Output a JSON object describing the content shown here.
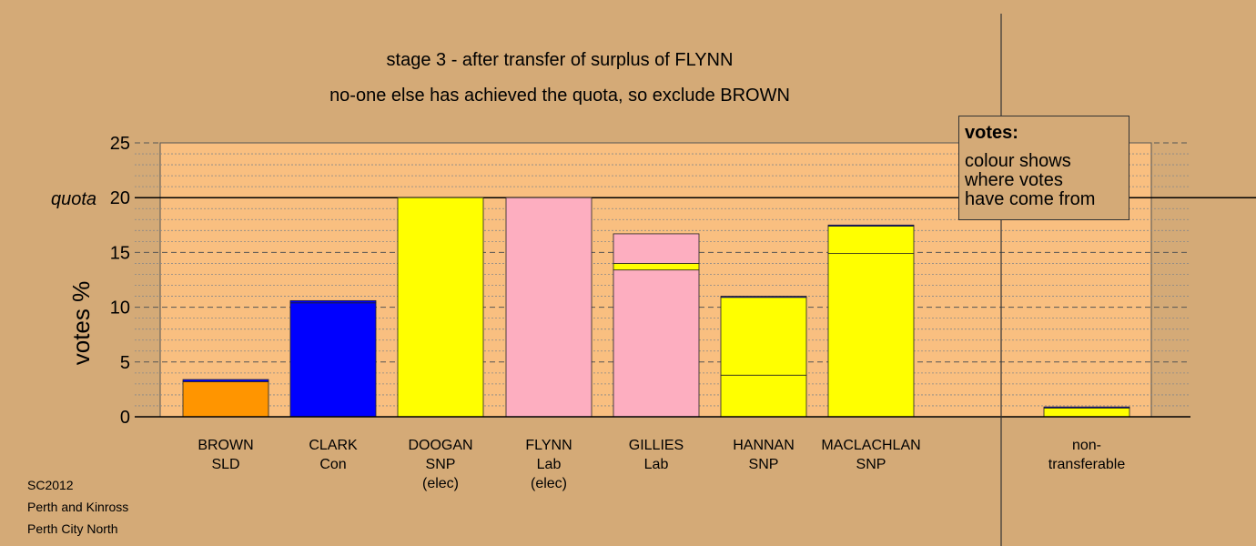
{
  "title_line1": "stage 3 - after transfer of surplus of FLYNN",
  "title_line2": "no-one else has achieved the quota, so exclude BROWN",
  "ylabel": "votes %",
  "quota_label": "quota",
  "legend": {
    "title": "votes:",
    "lines": [
      "colour shows",
      "where votes",
      "have come from"
    ]
  },
  "footer": [
    "SC2012",
    "Perth and Kinross",
    "Perth City North"
  ],
  "colors": {
    "background": "#d4aa77",
    "plot": "#f9bf80",
    "SLD": "#ff9500",
    "Con": "#0000ff",
    "SNP": "#ffff00",
    "Lab": "#fdaec0"
  },
  "chart_data": {
    "type": "bar",
    "stacked": true,
    "ylim": [
      0,
      25
    ],
    "yticks": [
      0,
      5,
      10,
      15,
      20,
      25
    ],
    "quota": 20,
    "grid": true,
    "categories": [
      {
        "lines": [
          "BROWN",
          "SLD"
        ],
        "segments": [
          {
            "from": "SLD",
            "value": 3.2
          },
          {
            "from": "Con",
            "value": 0.2
          }
        ]
      },
      {
        "lines": [
          "CLARK",
          "Con"
        ],
        "segments": [
          {
            "from": "Con",
            "value": 10.4
          },
          {
            "from": "Con",
            "value": 0.2
          }
        ]
      },
      {
        "lines": [
          "DOOGAN",
          "SNP",
          "(elec)"
        ],
        "segments": [
          {
            "from": "SNP",
            "value": 20.0
          }
        ]
      },
      {
        "lines": [
          "FLYNN",
          "Lab",
          "(elec)"
        ],
        "segments": [
          {
            "from": "Lab",
            "value": 20.0
          }
        ]
      },
      {
        "lines": [
          "GILLIES",
          "Lab"
        ],
        "segments": [
          {
            "from": "Lab",
            "value": 13.4
          },
          {
            "from": "SNP",
            "value": 0.6
          },
          {
            "from": "Lab",
            "value": 2.7
          }
        ]
      },
      {
        "lines": [
          "HANNAN",
          "SNP"
        ],
        "segments": [
          {
            "from": "SNP",
            "value": 3.8
          },
          {
            "from": "SNP",
            "value": 7.1
          },
          {
            "from": "Con",
            "value": 0.1
          }
        ]
      },
      {
        "lines": [
          "MACLACHLAN",
          "SNP"
        ],
        "segments": [
          {
            "from": "SNP",
            "value": 14.9
          },
          {
            "from": "SNP",
            "value": 2.5
          },
          {
            "from": "Con",
            "value": 0.1
          }
        ]
      },
      {
        "lines": [
          "non-",
          "transferable"
        ],
        "segments": [
          {
            "from": "SNP",
            "value": 0.8
          },
          {
            "from": "Con",
            "value": 0.1
          }
        ]
      }
    ]
  }
}
